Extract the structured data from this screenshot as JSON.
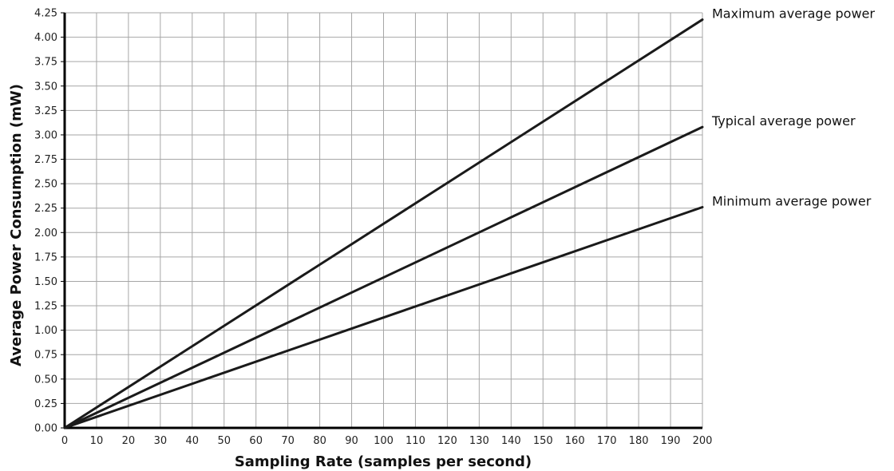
{
  "chart_data": {
    "type": "line",
    "title": "",
    "xlabel": "Sampling Rate (samples per second)",
    "ylabel": "Average Power Consumption (mW)",
    "xlim": [
      0,
      200
    ],
    "ylim": [
      0,
      4.25
    ],
    "x_ticks": [
      "0",
      "10",
      "20",
      "30",
      "40",
      "50",
      "60",
      "70",
      "80",
      "90",
      "100",
      "110",
      "120",
      "130",
      "140",
      "150",
      "160",
      "170",
      "180",
      "190",
      "200"
    ],
    "y_ticks": [
      "0.00",
      "0.25",
      "0.50",
      "0.75",
      "1.00",
      "1.25",
      "1.50",
      "1.75",
      "2.00",
      "2.25",
      "2.50",
      "2.75",
      "3.00",
      "3.25",
      "3.50",
      "3.75",
      "4.00",
      "4.25"
    ],
    "grid": true,
    "legend": "labels at right end of each line",
    "series": [
      {
        "name": "Maximum average power",
        "x": [
          0,
          200
        ],
        "y": [
          0,
          4.18
        ],
        "color": "#1a1a1a"
      },
      {
        "name": "Typical average power",
        "x": [
          0,
          200
        ],
        "y": [
          0,
          3.08
        ],
        "color": "#1a1a1a"
      },
      {
        "name": "Minimum average power",
        "x": [
          0,
          200
        ],
        "y": [
          0,
          2.26
        ],
        "color": "#1a1a1a"
      }
    ]
  },
  "colors": {
    "grid": "#a6a6a6",
    "axis": "#000000",
    "line": "#1a1a1a"
  }
}
